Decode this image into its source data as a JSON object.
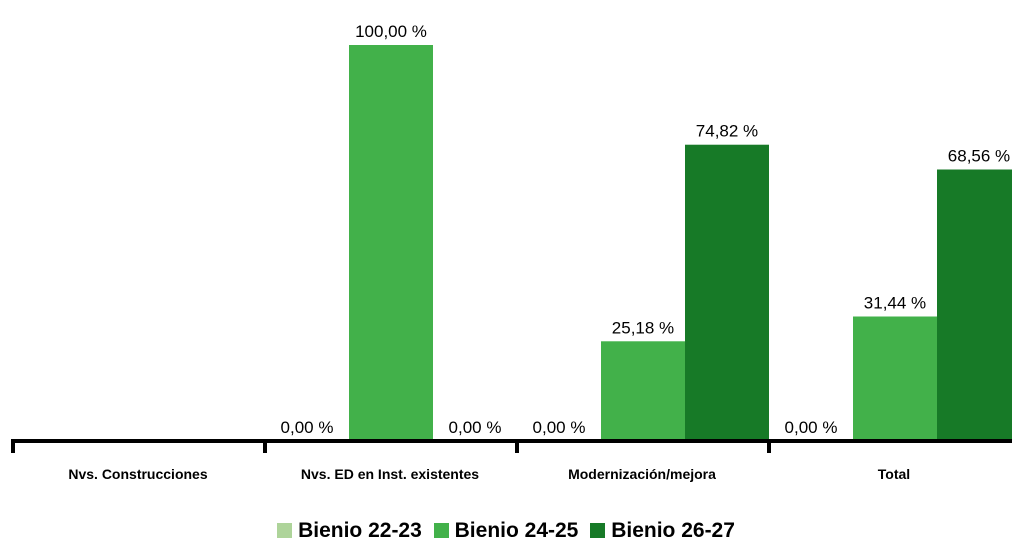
{
  "colors": {
    "Bienio 22-23": "#aed49a",
    "Bienio 24-25": "#42b14a",
    "Bienio 26-27": "#177a27",
    "axis": "#000000"
  },
  "chart_data": {
    "type": "bar",
    "categories": [
      "Nvs. Construcciones",
      "Nvs. ED en Inst. existentes",
      "Modernización/mejora",
      "Total"
    ],
    "series": [
      {
        "name": "Bienio 22-23",
        "values": [
          null,
          0.0,
          0.0,
          0.0
        ],
        "labels": [
          "",
          "0,00 %",
          "0,00 %",
          "0,00 %"
        ]
      },
      {
        "name": "Bienio 24-25",
        "values": [
          null,
          100.0,
          25.18,
          31.44
        ],
        "labels": [
          "",
          "100,00 %",
          "25,18 %",
          "31,44 %"
        ]
      },
      {
        "name": "Bienio 26-27",
        "values": [
          null,
          0.0,
          74.82,
          68.56
        ],
        "labels": [
          "",
          "0,00 %",
          "74,82 %",
          "68,56 %"
        ]
      }
    ],
    "ylim": [
      0,
      100
    ],
    "grid": false,
    "legend_position": "bottom"
  }
}
